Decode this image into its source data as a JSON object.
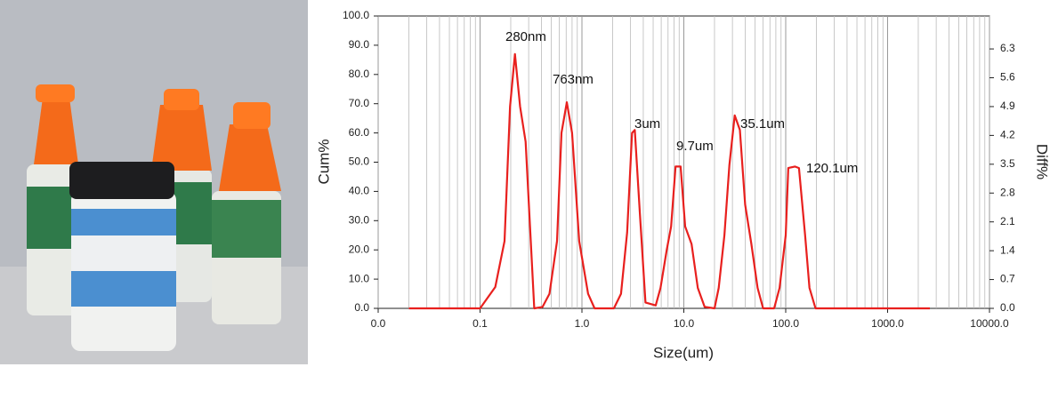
{
  "chart_data": {
    "type": "line",
    "xlabel": "Size(um)",
    "ylabel": "Cum%",
    "y2label": "Diff%",
    "xscale": "log",
    "xlim": [
      0.01,
      10000
    ],
    "xticks": [
      {
        "value": 0.01,
        "label": "0.0"
      },
      0.1,
      {
        "value": 1,
        "label": "1.0"
      },
      {
        "value": 10,
        "label": "10.0"
      },
      {
        "value": 100,
        "label": "100.0"
      },
      {
        "value": 1000,
        "label": "1000.0"
      },
      {
        "value": 10000,
        "label": "10000.0"
      }
    ],
    "ylim": [
      0,
      100
    ],
    "yticks": [
      {
        "value": 0,
        "label": "0.0"
      },
      {
        "value": 10,
        "label": "10.0"
      },
      {
        "value": 20,
        "label": "20.0"
      },
      {
        "value": 30,
        "label": "30.0"
      },
      {
        "value": 40,
        "label": "40.0"
      },
      {
        "value": 50,
        "label": "50.0"
      },
      {
        "value": 60,
        "label": "60.0"
      },
      {
        "value": 70,
        "label": "70.0"
      },
      {
        "value": 80,
        "label": "80.0"
      },
      {
        "value": 90,
        "label": "90.0"
      },
      {
        "value": 100,
        "label": "100.0"
      }
    ],
    "y2lim": [
      0,
      7.1
    ],
    "y2ticks": [
      {
        "value": 0,
        "label": "0.0"
      },
      0.7,
      1.4,
      2.1,
      2.8,
      3.5,
      4.2,
      4.9,
      5.6,
      6.3
    ],
    "grid": true,
    "minor_grid": true,
    "series": [
      {
        "color": "#e8201e",
        "x": [
          0.02,
          0.1,
          0.141,
          0.174,
          0.197,
          0.22,
          0.247,
          0.28,
          0.34,
          0.41,
          0.48,
          0.57,
          0.63,
          0.71,
          0.8,
          0.94,
          1.15,
          1.33,
          2.06,
          2.42,
          2.78,
          3.1,
          3.3,
          3.7,
          4.2,
          5.3,
          5.9,
          6.8,
          7.5,
          8.3,
          9.3,
          10.3,
          11.9,
          13.7,
          16,
          20,
          22,
          25,
          28,
          31.6,
          35.5,
          40,
          46,
          53,
          60,
          77,
          87,
          100,
          106,
          123,
          135,
          155,
          171,
          196,
          2600
        ],
        "values": [
          0,
          0,
          7.3,
          23,
          69,
          87,
          69,
          57,
          0,
          0.5,
          5,
          23,
          60,
          70.5,
          60,
          23,
          5,
          0,
          0,
          5,
          26,
          60,
          61,
          32.5,
          2,
          1,
          7,
          20,
          28,
          48.5,
          48.5,
          28,
          22,
          7,
          0.5,
          0,
          7,
          25,
          49,
          66,
          61,
          35.5,
          22,
          7,
          0,
          0,
          7,
          25,
          48,
          48.5,
          48,
          25,
          7,
          0,
          0
        ]
      }
    ],
    "annotations": [
      "280nm",
      "763nm",
      "3um",
      "9.7um",
      "35.1um",
      "120.1um"
    ]
  }
}
